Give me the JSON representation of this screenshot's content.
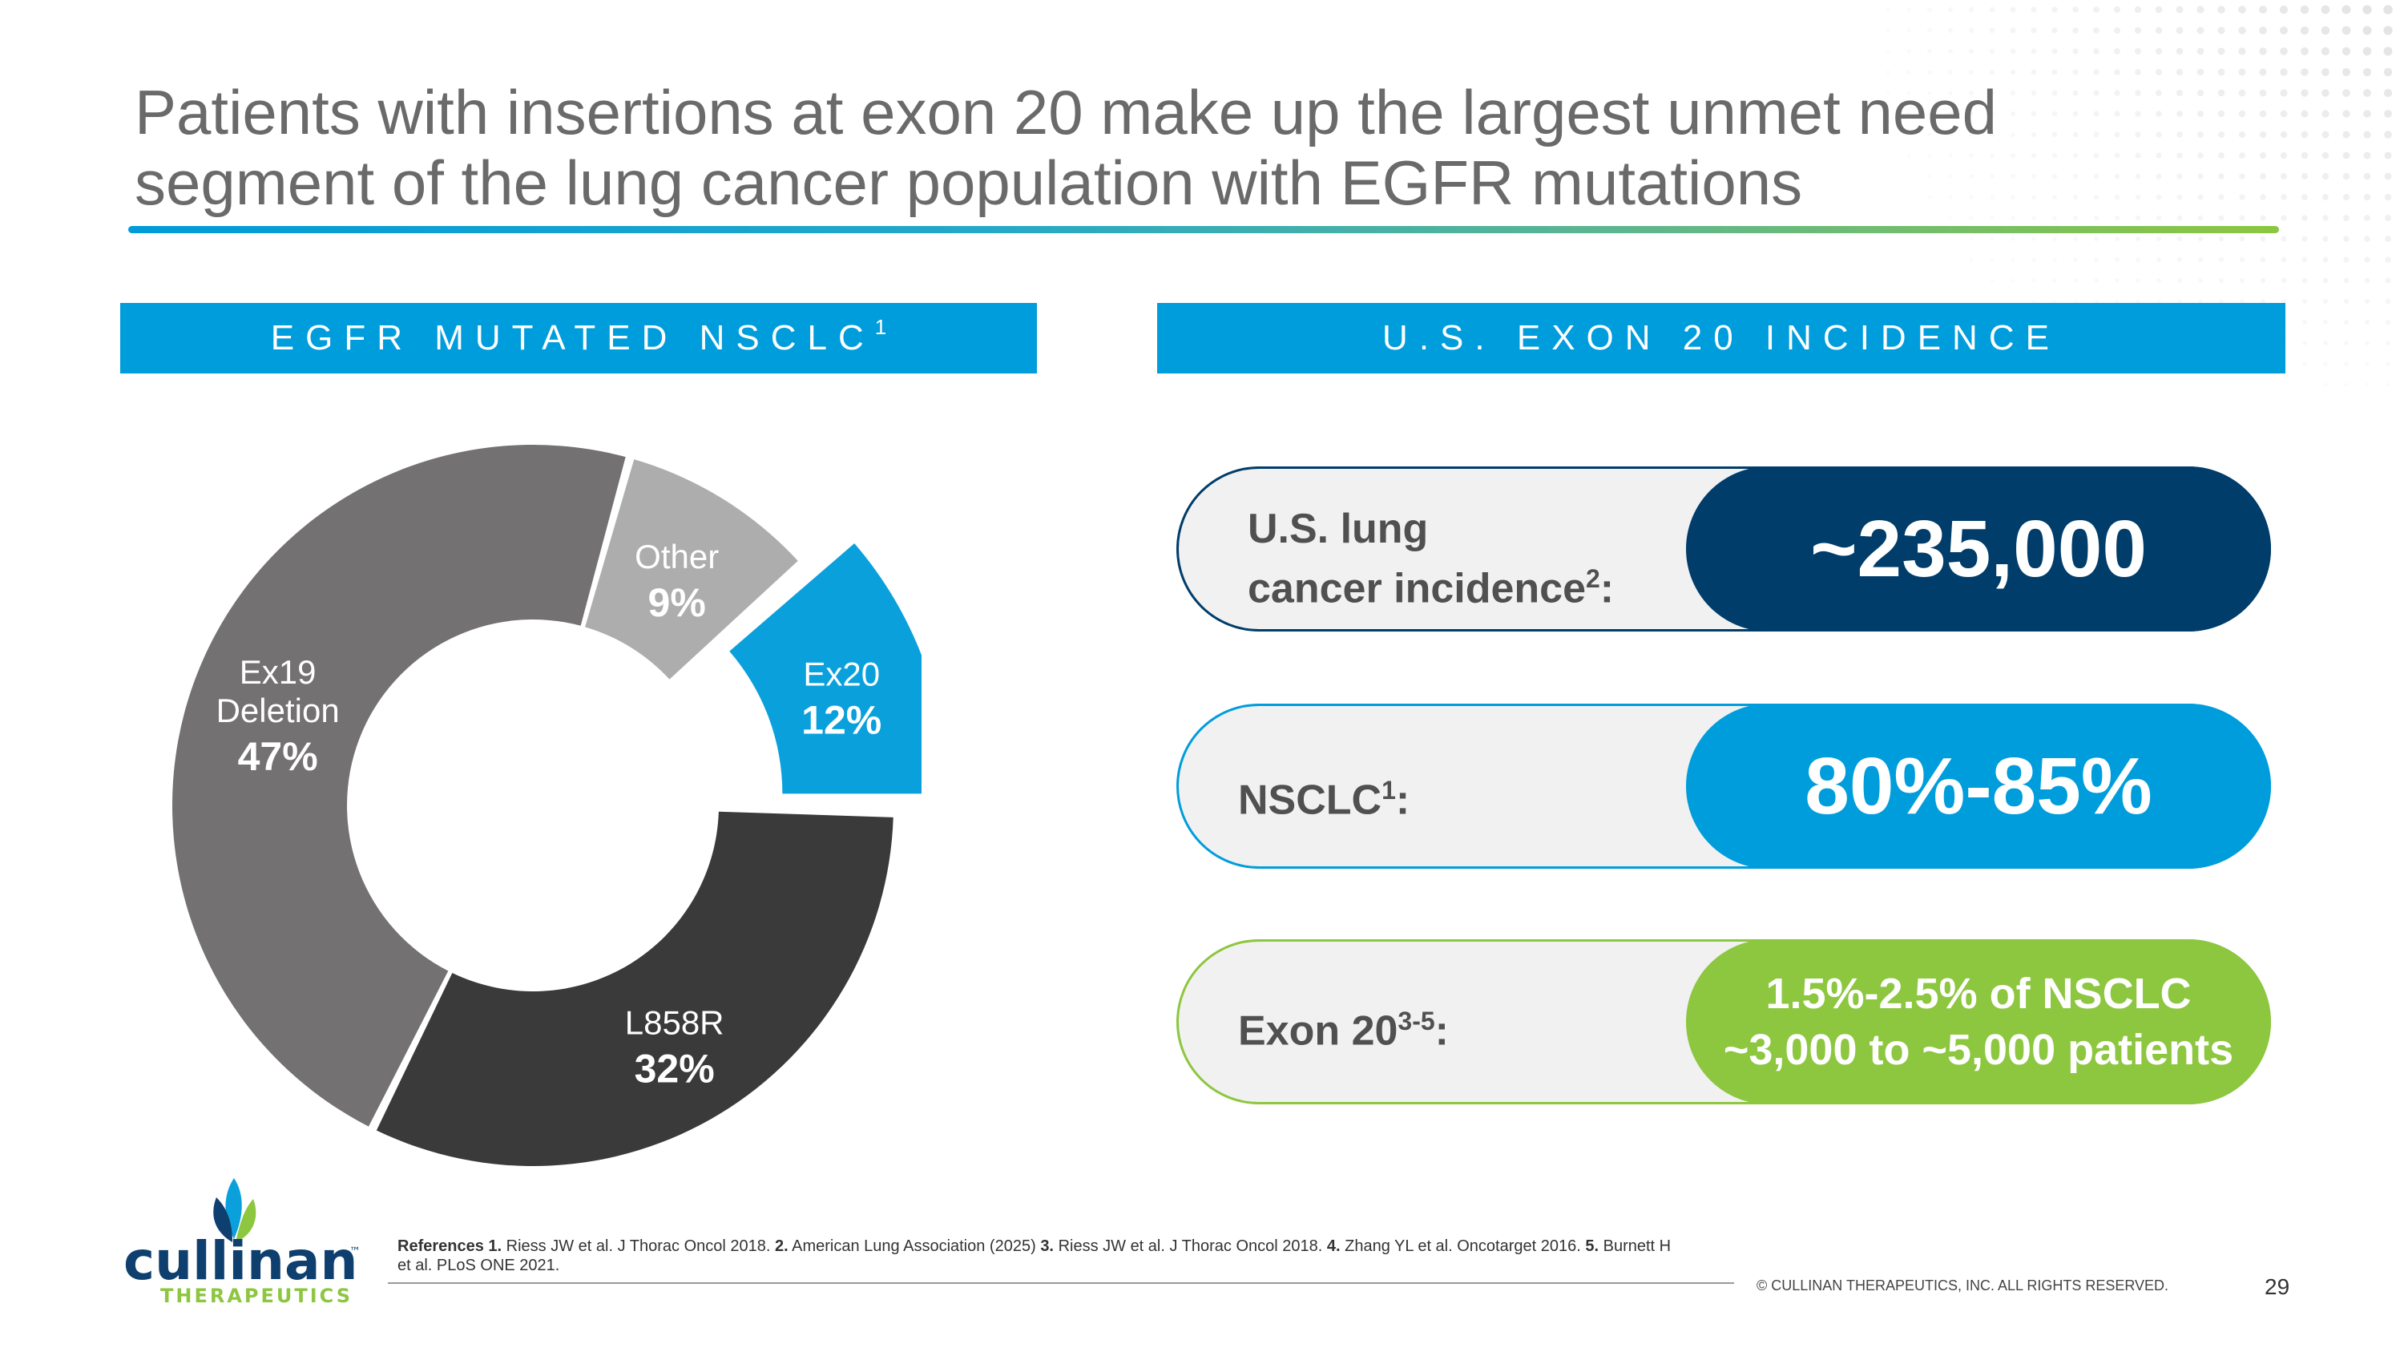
{
  "slide": {
    "title_line1": "Patients with insertions at exon 20 make up the largest unmet need",
    "title_line2": "segment of the lung cancer population with EGFR mutations",
    "page_number": "29",
    "copyright": "© CULLINAN THERAPEUTICS, INC. ALL RIGHTS RESERVED.",
    "brand_name": "cullinan",
    "brand_tm": "™",
    "brand_sub": "THERAPEUTICS"
  },
  "left_panel": {
    "banner_text": "EGFR MUTATED NSCLC",
    "banner_sup": "1"
  },
  "right_panel": {
    "banner_text": "U.S. EXON 20 INCIDENCE",
    "rows": [
      {
        "label_line1": "U.S. lung",
        "label_line2": "cancer incidence",
        "label_sup": "2",
        "label_suffix": ":",
        "value": "~235,000"
      },
      {
        "label": "NSCLC",
        "label_sup": "1",
        "label_suffix": ":",
        "value": "80%-85%"
      },
      {
        "label": "Exon 20",
        "label_sup": "3-5",
        "label_suffix": ":",
        "value_line1": "1.5%-2.5% of NSCLC",
        "value_line2": "~3,000 to ~5,000 patients"
      }
    ]
  },
  "references": {
    "heading": "References",
    "items": [
      {
        "num": "1.",
        "text": "Riess JW et al. J Thorac Oncol 2018."
      },
      {
        "num": "2.",
        "text": "American Lung Association (2025)"
      },
      {
        "num": "3.",
        "text": "Riess JW et al. J Thorac Oncol 2018."
      },
      {
        "num": "4.",
        "text": "Zhang YL et al. Oncotarget 2016."
      },
      {
        "num": "5.",
        "text": "Burnett H et al. PLoS ONE 2021."
      }
    ]
  },
  "colors": {
    "blue": "#009ddc",
    "navy": "#003d6a",
    "green": "#8dc63f",
    "ex20": "#0aa0dc",
    "l858r": "#3a3a3a",
    "ex19": "#737171",
    "other": "#adadad"
  },
  "chart_data": {
    "type": "pie",
    "title": "EGFR MUTATED NSCLC",
    "slices": [
      {
        "label": "Ex20",
        "value": 12,
        "display": "12%",
        "color": "#0aa0dc",
        "exploded": true
      },
      {
        "label": "L858R",
        "value": 32,
        "display": "32%",
        "color": "#3a3a3a"
      },
      {
        "label_lines": [
          "Ex19",
          "Deletion"
        ],
        "label": "Ex19 Deletion",
        "value": 47,
        "display": "47%",
        "color": "#737171"
      },
      {
        "label": "Other",
        "value": 9,
        "display": "9%",
        "color": "#adadad"
      }
    ]
  }
}
